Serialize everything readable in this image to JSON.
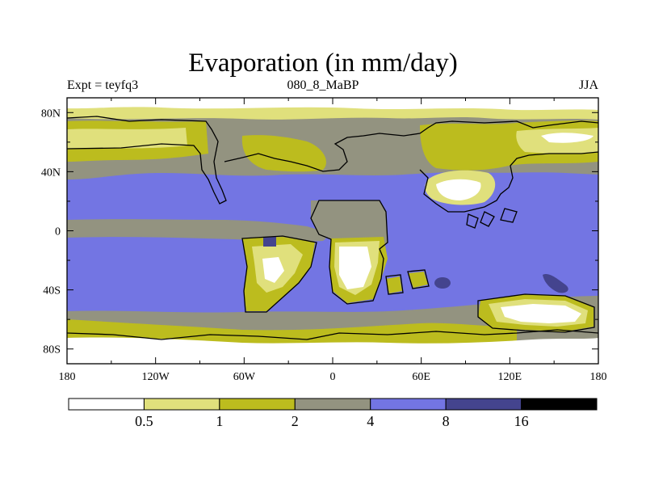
{
  "title": "Evaporation (in mm/day)",
  "subtitle_left": "Expt = teyfq3",
  "subtitle_center": "080_8_MaBP",
  "subtitle_right": "JJA",
  "x_ticks": [
    "180",
    "120W",
    "60W",
    "0",
    "60E",
    "120E",
    "180"
  ],
  "y_ticks": [
    "80N",
    "40N",
    "0",
    "40S",
    "80S"
  ],
  "colorbar": {
    "levels": [
      "0.5",
      "1",
      "2",
      "4",
      "8",
      "16"
    ],
    "colors": [
      "#ffffff",
      "#e0e07c",
      "#bcbc1e",
      "#939380",
      "#7375e3",
      "#44448e",
      "#000000"
    ]
  },
  "colors": {
    "ocean": "#7375e3",
    "land_gray": "#939380",
    "olive": "#bcbc1e",
    "light_yellow": "#e0e07c",
    "white": "#ffffff",
    "dark_blue": "#44448e"
  }
}
